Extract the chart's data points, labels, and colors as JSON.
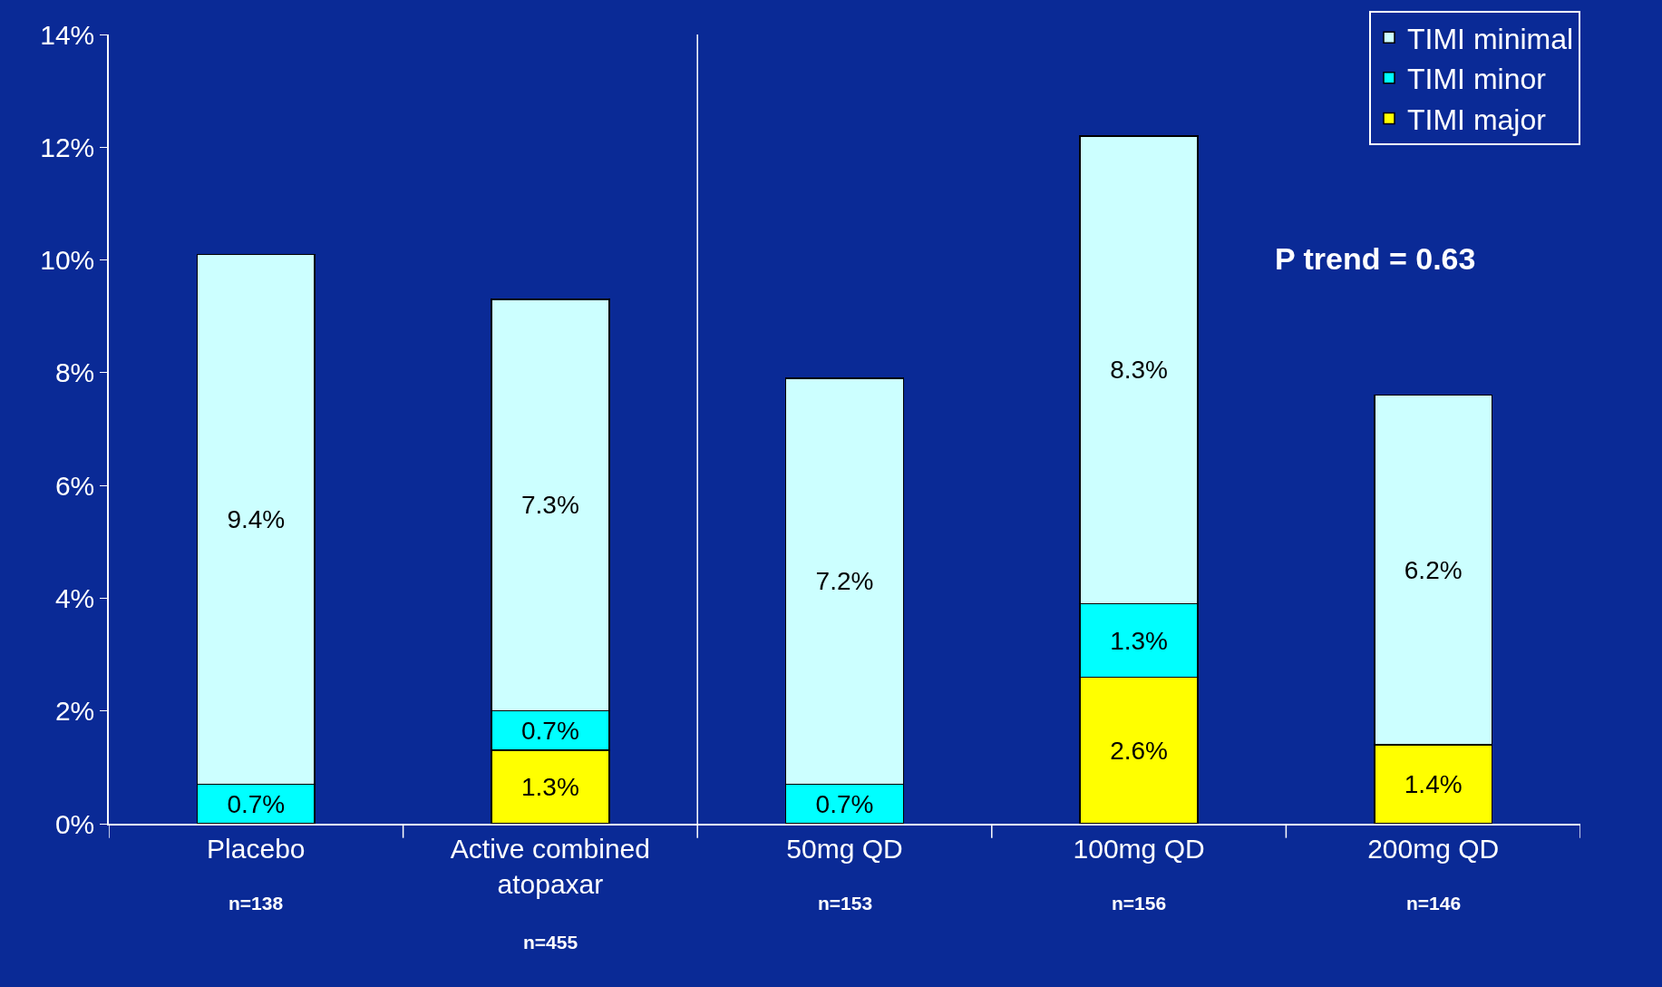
{
  "chart_data": {
    "type": "bar",
    "stacked": true,
    "categories": [
      "Placebo",
      "Active combined atopaxar",
      "50mg QD",
      "100mg QD",
      "200mg QD"
    ],
    "series": [
      {
        "name": "TIMI major",
        "color": "#ffff00",
        "values": [
          null,
          1.3,
          null,
          2.6,
          1.4
        ],
        "value_labels": [
          null,
          "1.3%",
          null,
          "2.6%",
          "1.4%"
        ]
      },
      {
        "name": "TIMI minor",
        "color": "#00ffff",
        "values": [
          0.7,
          0.7,
          0.7,
          1.3,
          null
        ],
        "value_labels": [
          "0.7%",
          "0.7%",
          "0.7%",
          "1.3%",
          null
        ]
      },
      {
        "name": "TIMI minimal",
        "color": "#ccffff",
        "values": [
          9.4,
          7.3,
          7.2,
          8.3,
          6.2
        ],
        "value_labels": [
          "9.4%",
          "7.3%",
          "7.2%",
          "8.3%",
          "6.2%"
        ]
      }
    ],
    "ylim": [
      0,
      14
    ],
    "yticks": [
      {
        "value": 0,
        "label": "0%"
      },
      {
        "value": 2,
        "label": "2%"
      },
      {
        "value": 4,
        "label": "4%"
      },
      {
        "value": 6,
        "label": "6%"
      },
      {
        "value": 8,
        "label": "8%"
      },
      {
        "value": 10,
        "label": "10%"
      },
      {
        "value": 12,
        "label": "12%"
      },
      {
        "value": 14,
        "label": "14%"
      }
    ],
    "annotations": [
      "n=138",
      "n=455",
      "n=153",
      "n=156",
      "n=146",
      "P trend = 0.63"
    ],
    "grid": false,
    "legend": "top right"
  }
}
